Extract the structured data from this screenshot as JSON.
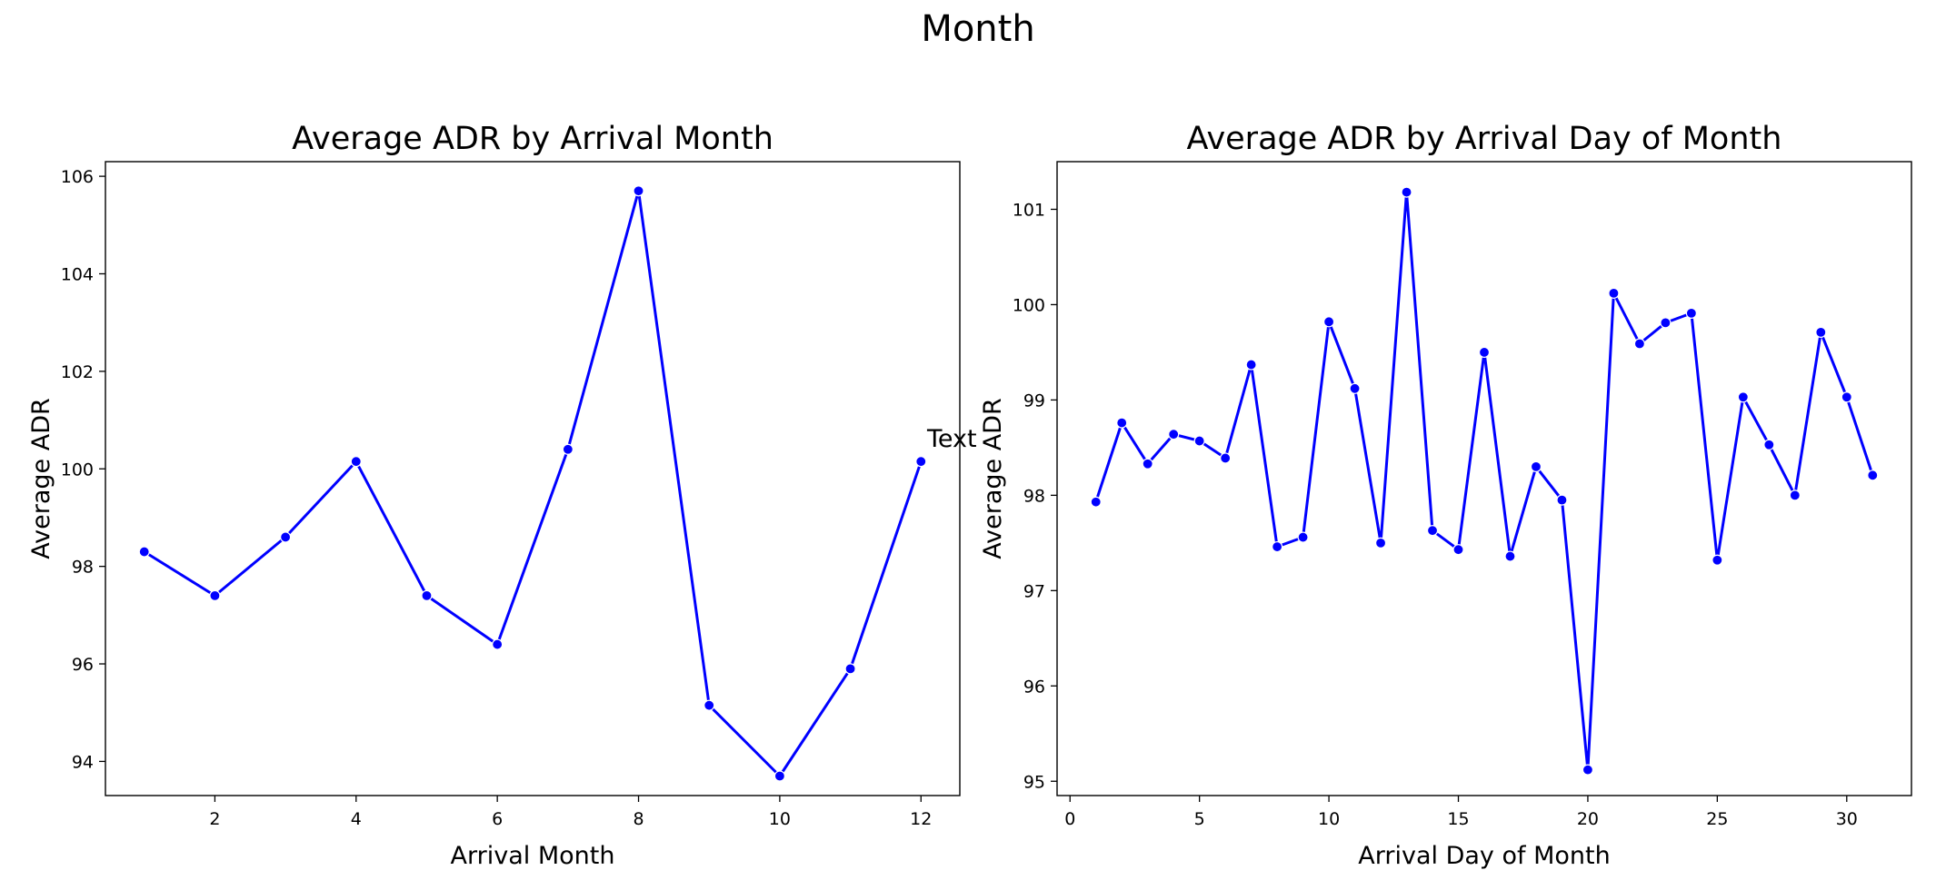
{
  "suptitle": "Month",
  "stray_text": "Text",
  "chart_data": [
    {
      "type": "line",
      "title": "Average ADR by Arrival Month",
      "xlabel": "Arrival Month",
      "ylabel": "Average ADR",
      "xlim": [
        0.45,
        12.55
      ],
      "ylim": [
        93.3,
        106.3
      ],
      "xticks": [
        2,
        4,
        6,
        8,
        10,
        12
      ],
      "yticks": [
        94,
        96,
        98,
        100,
        102,
        104,
        106
      ],
      "grid": false,
      "color": "#0000ff",
      "x": [
        1,
        2,
        3,
        4,
        5,
        6,
        7,
        8,
        9,
        10,
        11,
        12
      ],
      "y": [
        98.3,
        97.4,
        98.6,
        100.15,
        97.4,
        96.4,
        100.4,
        105.7,
        95.15,
        93.7,
        95.9,
        100.15
      ]
    },
    {
      "type": "line",
      "title": "Average ADR by Arrival Day of Month",
      "xlabel": "Arrival Day of Month",
      "ylabel": "Average ADR",
      "xlim": [
        -0.5,
        32.5
      ],
      "ylim": [
        94.85,
        101.5
      ],
      "xticks": [
        0,
        5,
        10,
        15,
        20,
        25,
        30
      ],
      "yticks": [
        95,
        96,
        97,
        98,
        99,
        100,
        101
      ],
      "grid": false,
      "color": "#0000ff",
      "x": [
        1,
        2,
        3,
        4,
        5,
        6,
        7,
        8,
        9,
        10,
        11,
        12,
        13,
        14,
        15,
        16,
        17,
        18,
        19,
        20,
        21,
        22,
        23,
        24,
        25,
        26,
        27,
        28,
        29,
        30,
        31
      ],
      "y": [
        97.93,
        98.76,
        98.33,
        98.64,
        98.57,
        98.39,
        99.37,
        97.46,
        97.56,
        99.82,
        99.12,
        97.5,
        101.18,
        97.63,
        97.43,
        99.5,
        97.36,
        98.3,
        97.95,
        95.12,
        100.12,
        99.59,
        99.81,
        99.91,
        97.32,
        99.03,
        98.53,
        98.0,
        99.71,
        99.03,
        98.21
      ]
    }
  ]
}
